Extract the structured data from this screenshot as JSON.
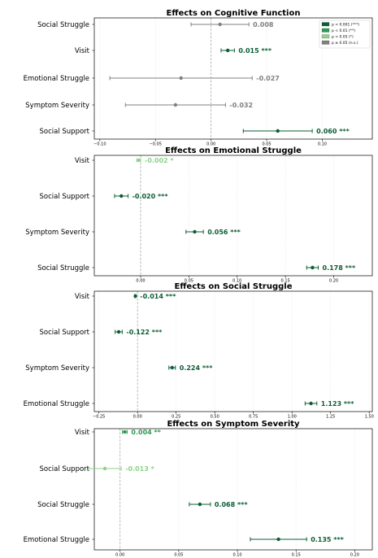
{
  "colors": {
    "p001": "#0b5e35",
    "p01": "#2e9a52",
    "p05": "#8fd18a",
    "ns": "#808080"
  },
  "legend": [
    {
      "label": "p < 0.001 (***)",
      "sig": "p001"
    },
    {
      "label": "p < 0.01 (**)",
      "sig": "p01"
    },
    {
      "label": "p < 0.05 (*)",
      "sig": "p05"
    },
    {
      "label": "p ≥ 0.05 (n.s.)",
      "sig": "ns"
    }
  ],
  "chart_data": [
    {
      "type": "scatter",
      "title": "Effects on Cognitive Function",
      "xlim": [
        -0.105,
        0.145
      ],
      "xticks": [
        -0.1,
        -0.05,
        0.0,
        0.05,
        0.1
      ],
      "xtick_labels": [
        "−0.10",
        "−0.05",
        "0.00",
        "0.05",
        "0.10"
      ],
      "grid": true,
      "legend_position": "top-right",
      "rows": [
        {
          "label": "Social Struggle",
          "value": 0.008,
          "lo": -0.018,
          "hi": 0.034,
          "sig": "ns",
          "text": "0.008"
        },
        {
          "label": "Visit",
          "value": 0.015,
          "lo": 0.009,
          "hi": 0.021,
          "sig": "p001",
          "text": "0.015 ***"
        },
        {
          "label": "Emotional Struggle",
          "value": -0.027,
          "lo": -0.091,
          "hi": 0.037,
          "sig": "ns",
          "text": "-0.027"
        },
        {
          "label": "Symptom Severity",
          "value": -0.032,
          "lo": -0.077,
          "hi": 0.013,
          "sig": "ns",
          "text": "-0.032"
        },
        {
          "label": "Social Support",
          "value": 0.06,
          "lo": 0.029,
          "hi": 0.091,
          "sig": "p001",
          "text": "0.060 ***"
        }
      ]
    },
    {
      "type": "scatter",
      "title": "Effects on Emotional Struggle",
      "xlim": [
        -0.048,
        0.24
      ],
      "xticks": [
        0.0,
        0.05,
        0.1,
        0.15,
        0.2
      ],
      "xtick_labels": [
        "0.00",
        "0.05",
        "0.10",
        "0.15",
        "0.20"
      ],
      "grid": true,
      "rows": [
        {
          "label": "Visit",
          "value": -0.002,
          "lo": -0.004,
          "hi": 0.0,
          "sig": "p05",
          "text": "-0.002 *"
        },
        {
          "label": "Social Support",
          "value": -0.02,
          "lo": -0.027,
          "hi": -0.013,
          "sig": "p001",
          "text": "-0.020 ***"
        },
        {
          "label": "Symptom Severity",
          "value": 0.056,
          "lo": 0.047,
          "hi": 0.065,
          "sig": "p001",
          "text": "0.056 ***"
        },
        {
          "label": "Social Struggle",
          "value": 0.178,
          "lo": 0.172,
          "hi": 0.184,
          "sig": "p001",
          "text": "0.178 ***"
        }
      ]
    },
    {
      "type": "scatter",
      "title": "Effects on Social Struggle",
      "xlim": [
        -0.28,
        1.52
      ],
      "xticks": [
        -0.25,
        0.0,
        0.25,
        0.5,
        0.75,
        1.0,
        1.25,
        1.5
      ],
      "xtick_labels": [
        "−0.25",
        "0.00",
        "0.25",
        "0.50",
        "0.75",
        "1.00",
        "1.25",
        "1.50"
      ],
      "grid": true,
      "rows": [
        {
          "label": "Visit",
          "value": -0.014,
          "lo": -0.018,
          "hi": -0.01,
          "sig": "p001",
          "text": "-0.014 ***"
        },
        {
          "label": "Social Support",
          "value": -0.122,
          "lo": -0.145,
          "hi": -0.099,
          "sig": "p001",
          "text": "-0.122 ***"
        },
        {
          "label": "Symptom Severity",
          "value": 0.224,
          "lo": 0.203,
          "hi": 0.245,
          "sig": "p001",
          "text": "0.224 ***"
        },
        {
          "label": "Emotional Struggle",
          "value": 1.123,
          "lo": 1.085,
          "hi": 1.161,
          "sig": "p001",
          "text": "1.123 ***"
        }
      ]
    },
    {
      "type": "scatter",
      "title": "Effects on Symptom Severity",
      "xlim": [
        -0.022,
        0.215
      ],
      "xticks": [
        0.0,
        0.05,
        0.1,
        0.15,
        0.2
      ],
      "xtick_labels": [
        "0.00",
        "0.05",
        "0.10",
        "0.15",
        "0.20"
      ],
      "grid": true,
      "rows": [
        {
          "label": "Visit",
          "value": 0.004,
          "lo": 0.002,
          "hi": 0.006,
          "sig": "p01",
          "text": "0.004 **"
        },
        {
          "label": "Social Support",
          "value": -0.013,
          "lo": -0.027,
          "hi": 0.001,
          "sig": "p05",
          "text": "-0.013 *"
        },
        {
          "label": "Social Struggle",
          "value": 0.068,
          "lo": 0.059,
          "hi": 0.077,
          "sig": "p001",
          "text": "0.068 ***"
        },
        {
          "label": "Emotional Struggle",
          "value": 0.135,
          "lo": 0.111,
          "hi": 0.159,
          "sig": "p001",
          "text": "0.135 ***"
        }
      ]
    }
  ]
}
